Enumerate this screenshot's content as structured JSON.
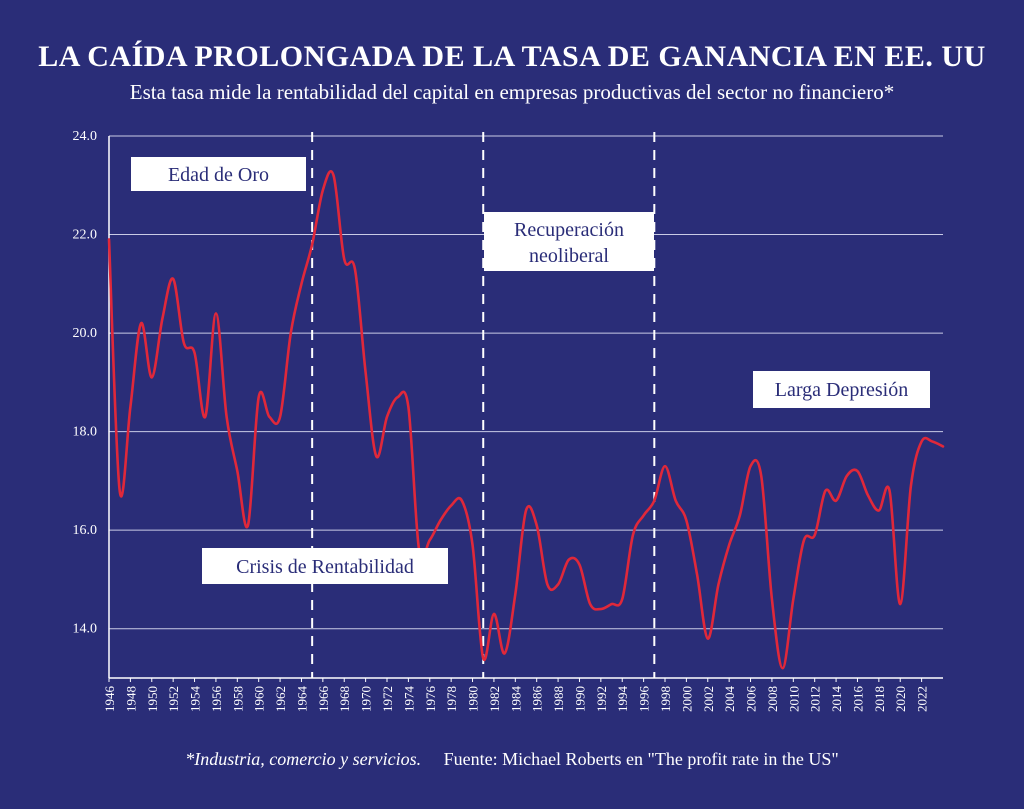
{
  "chart_data": {
    "type": "line",
    "title": "LA CAÍDA PROLONGADA DE LA TASA DE GANANCIA EN EE. UU",
    "subtitle": "Esta tasa mide la rentabilidad del capital en empresas productivas del sector no financiero*",
    "ylim": [
      13.0,
      24.0
    ],
    "yticks": [
      "24.0",
      "22.0",
      "20.0",
      "18.0",
      "16.0",
      "14.0"
    ],
    "xlim": [
      1946,
      2024
    ],
    "xticks": [
      "1946",
      "1948",
      "1950",
      "1952",
      "1954",
      "1956",
      "1958",
      "1960",
      "1962",
      "1964",
      "1966",
      "1968",
      "1970",
      "1972",
      "1974",
      "1976",
      "1978",
      "1980",
      "1982",
      "1984",
      "1986",
      "1988",
      "1990",
      "1992",
      "1994",
      "1996",
      "1998",
      "2000",
      "2002",
      "2004",
      "2006",
      "2008",
      "2010",
      "2012",
      "2014",
      "2016",
      "2018",
      "2020",
      "2022"
    ],
    "grid": "horizontal",
    "line_color": "#e0283a",
    "background": "#2a2d78",
    "series": [
      {
        "x": [
          1946,
          1947,
          1948,
          1949,
          1950,
          1951,
          1952,
          1953,
          1954,
          1955,
          1956,
          1957,
          1958,
          1959,
          1960,
          1961,
          1962,
          1963,
          1964,
          1965,
          1966,
          1967,
          1968,
          1969,
          1970,
          1971,
          1972,
          1973,
          1974,
          1975,
          1976,
          1977,
          1978,
          1979,
          1980,
          1981,
          1982,
          1983,
          1984,
          1985,
          1986,
          1987,
          1988,
          1989,
          1990,
          1991,
          1992,
          1993,
          1994,
          1995,
          1996,
          1997,
          1998,
          1999,
          2000,
          2001,
          2002,
          2003,
          2004,
          2005,
          2006,
          2007,
          2008,
          2009,
          2010,
          2011,
          2012,
          2013,
          2014,
          2015,
          2016,
          2017,
          2018,
          2019,
          2020,
          2021,
          2022,
          2023,
          2024
        ],
        "values": [
          21.9,
          16.8,
          18.5,
          20.2,
          19.1,
          20.3,
          21.1,
          19.8,
          19.6,
          18.3,
          20.4,
          18.3,
          17.2,
          16.1,
          18.7,
          18.3,
          18.3,
          20.0,
          21.0,
          21.8,
          22.9,
          23.2,
          21.5,
          21.3,
          19.2,
          17.5,
          18.3,
          18.7,
          18.5,
          15.6,
          15.8,
          16.2,
          16.5,
          16.6,
          15.7,
          13.4,
          14.3,
          13.5,
          14.7,
          16.4,
          16.1,
          14.9,
          14.9,
          15.4,
          15.3,
          14.5,
          14.4,
          14.5,
          14.6,
          15.9,
          16.3,
          16.6,
          17.3,
          16.6,
          16.2,
          15.1,
          13.8,
          14.9,
          15.7,
          16.3,
          17.3,
          17.1,
          14.6,
          13.2,
          14.6,
          15.8,
          15.9,
          16.8,
          16.6,
          17.1,
          17.2,
          16.7,
          16.4,
          16.8,
          14.5,
          16.9,
          17.8,
          17.8,
          17.7
        ]
      }
    ],
    "periods": [
      {
        "label": "Edad de Oro",
        "from": 1946,
        "to": 1965
      },
      {
        "label": "Crisis de Rentabilidad",
        "from": 1965,
        "to": 1981
      },
      {
        "label_lines": [
          "Recuperación",
          "neoliberal"
        ],
        "from": 1981,
        "to": 1997
      },
      {
        "label": "Larga Depresión",
        "from": 1997,
        "to": 2024
      }
    ],
    "dividers": [
      1965,
      1981,
      1997
    ]
  },
  "footer": {
    "note": "*Industria, comercio y servicios.",
    "source": "Fuente: Michael Roberts en \"The profit rate in the US\""
  }
}
